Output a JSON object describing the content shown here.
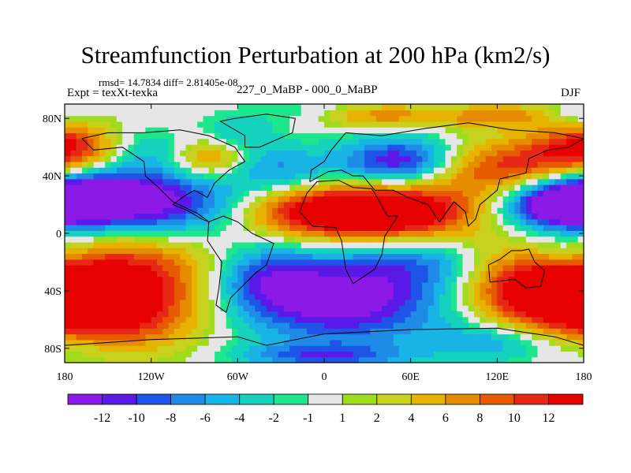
{
  "title": "Streamfunction Perturbation at 200 hPa (km2/s)",
  "stats_line": "rmsd= 14.7834 diff= 2.81405e-08",
  "left_label": "Expt = texXt-texka",
  "center_label": "227_0_MaBP - 000_0_MaBP",
  "right_label": "DJF",
  "colors": {
    "palette": [
      "#8c19e6",
      "#5a19e6",
      "#1e55e6",
      "#1e8ce6",
      "#19b4e6",
      "#14d2be",
      "#1ee68c",
      "#e6e6e6",
      "#a0dc1e",
      "#c8d21e",
      "#e6b400",
      "#e68c00",
      "#e65a00",
      "#e62814",
      "#e60000"
    ]
  },
  "chart_data": {
    "type": "heatmap",
    "title": "Streamfunction Perturbation at 200 hPa (km2/s)",
    "xlabel": "",
    "ylabel": "",
    "xlim": [
      -180,
      180
    ],
    "ylim": [
      -90,
      90
    ],
    "x_ticks": [
      -180,
      -120,
      -60,
      0,
      60,
      120,
      180
    ],
    "x_tick_labels": [
      "180",
      "120W",
      "60W",
      "0",
      "60E",
      "120E",
      "180"
    ],
    "y_ticks": [
      80,
      40,
      0,
      -40,
      -80
    ],
    "y_tick_labels": [
      "80N",
      "40N",
      "0",
      "40S",
      "80S"
    ],
    "colorbar_levels": [
      -12,
      -10,
      -8,
      -6,
      -4,
      -2,
      -1,
      1,
      2,
      4,
      6,
      8,
      10,
      12
    ],
    "colorbar_labels": [
      "-12",
      "-10",
      "-8",
      "-6",
      "-4",
      "-2",
      "-1",
      "1",
      "2",
      "4",
      "6",
      "8",
      "10",
      "12"
    ],
    "approx_features": [
      {
        "name": "tropical Pacific high",
        "lon": -150,
        "lat": -30,
        "value": 14
      },
      {
        "name": "north Pacific low",
        "lon": -140,
        "lat": 25,
        "value": -13
      },
      {
        "name": "south Atlantic/Indian low",
        "lon": 10,
        "lat": -45,
        "value": -14
      },
      {
        "name": "Africa/Asia high",
        "lon": 40,
        "lat": 20,
        "value": 14
      },
      {
        "name": "Europe low",
        "lon": 50,
        "lat": 50,
        "value": -13
      },
      {
        "name": "west Pacific low",
        "lon": 160,
        "lat": 20,
        "value": -12
      },
      {
        "name": "Australia high",
        "lon": 150,
        "lat": -40,
        "value": 12
      },
      {
        "name": "north Atlantic high",
        "lon": -80,
        "lat": 55,
        "value": 9
      }
    ]
  }
}
